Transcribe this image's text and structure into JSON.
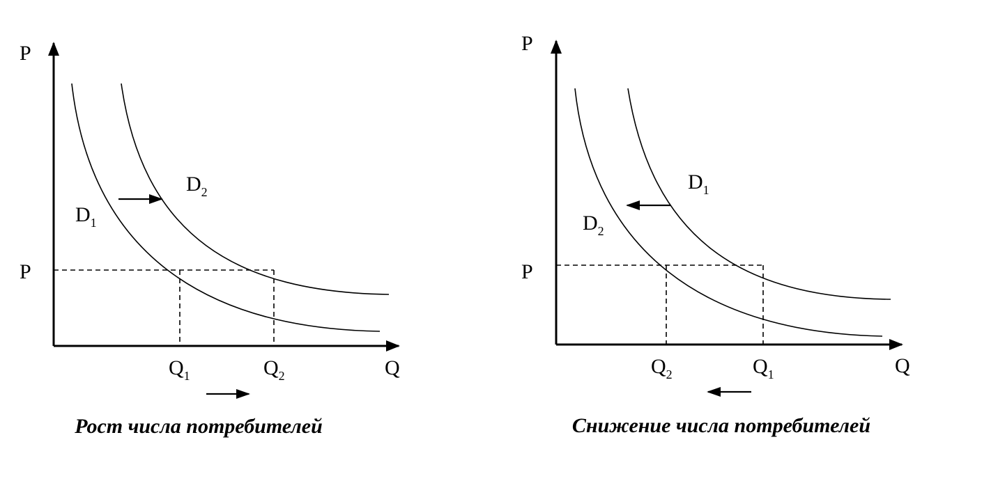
{
  "panels": [
    {
      "axis_y": "P",
      "axis_x": "Q",
      "price": "P",
      "curves": [
        {
          "letter": "D",
          "sub": "1"
        },
        {
          "letter": "D",
          "sub": "2"
        }
      ],
      "quantities": [
        {
          "letter": "Q",
          "sub": "1"
        },
        {
          "letter": "Q",
          "sub": "2"
        }
      ],
      "caption": "Рост числа потребителей"
    },
    {
      "axis_y": "P",
      "axis_x": "Q",
      "price": "P",
      "curves": [
        {
          "letter": "D",
          "sub": "1"
        },
        {
          "letter": "D",
          "sub": "2"
        }
      ],
      "quantities": [
        {
          "letter": "Q",
          "sub": "2"
        },
        {
          "letter": "Q",
          "sub": "1"
        }
      ],
      "caption": "Снижение числа потребителей"
    }
  ]
}
